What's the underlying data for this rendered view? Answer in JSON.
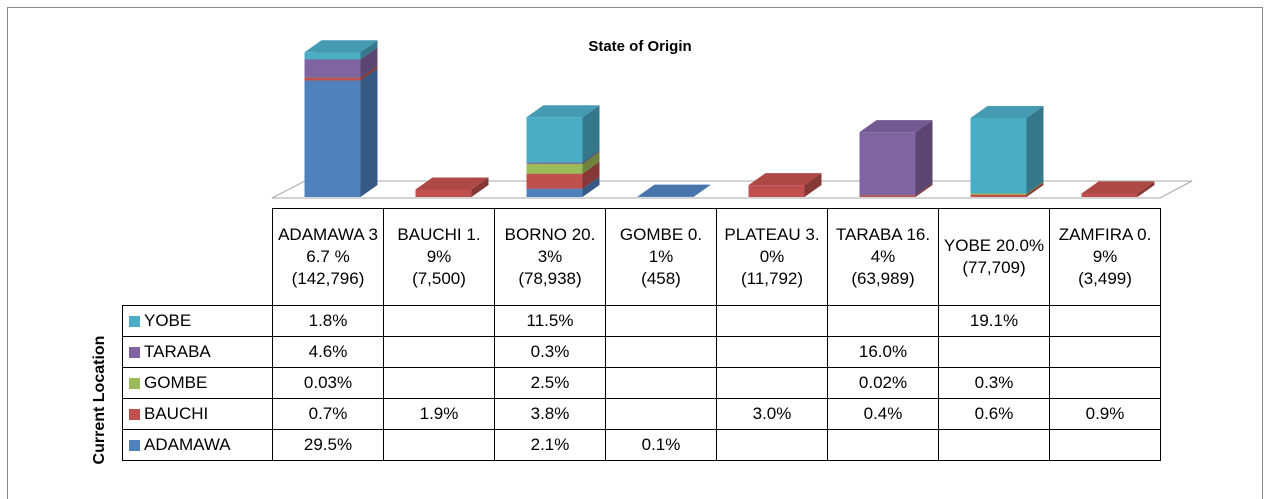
{
  "chart_data": {
    "type": "bar3d_stacked",
    "title": "State of Origin",
    "y_label": "Current Location",
    "categories": [
      "ADAMAWA",
      "BAUCHI",
      "BORNO",
      "GOMBE",
      "PLATEAU",
      "TARABA",
      "YOBE",
      "ZAMFIRA"
    ],
    "totals": [
      36.7,
      1.9,
      20.3,
      0.1,
      3.0,
      16.4,
      20.0,
      0.9
    ],
    "total_labels": [
      "36.7 %",
      "1.9%",
      "20.3%",
      "0.1%",
      "3.0%",
      "16.4%",
      "20.0%",
      "0.9%"
    ],
    "counts": [
      142796,
      7500,
      78938,
      458,
      11792,
      63989,
      77709,
      3499
    ],
    "count_labels": [
      "(142,796)",
      "(7,500)",
      "(78,938)",
      "(458)",
      "(11,792)",
      "(63,989)",
      "(77,709)",
      "(3,499)"
    ],
    "ylim": [
      0,
      40
    ],
    "series": [
      {
        "name": "YOBE",
        "color": "#4bacc6",
        "values": [
          1.8,
          null,
          11.5,
          null,
          null,
          null,
          19.1,
          null
        ],
        "value_labels": [
          "1.8%",
          null,
          "11.5%",
          null,
          null,
          null,
          "19.1%",
          null
        ]
      },
      {
        "name": "TARABA",
        "color": "#8064a2",
        "values": [
          4.6,
          null,
          0.3,
          null,
          null,
          16.0,
          null,
          null
        ],
        "value_labels": [
          "4.6%",
          null,
          "0.3%",
          null,
          null,
          "16.0%",
          null,
          null
        ]
      },
      {
        "name": "GOMBE",
        "color": "#9bbb59",
        "values": [
          0.03,
          null,
          2.5,
          null,
          null,
          0.02,
          0.3,
          null
        ],
        "value_labels": [
          "0.03%",
          null,
          "2.5%",
          null,
          null,
          "0.02%",
          "0.3%",
          null
        ]
      },
      {
        "name": "BAUCHI",
        "color": "#c0504d",
        "values": [
          0.7,
          1.9,
          3.8,
          null,
          3.0,
          0.4,
          0.6,
          0.9
        ],
        "value_labels": [
          "0.7%",
          "1.9%",
          "3.8%",
          null,
          "3.0%",
          "0.4%",
          "0.6%",
          "0.9%"
        ]
      },
      {
        "name": "ADAMAWA",
        "color": "#4f81bd",
        "values": [
          29.5,
          null,
          2.1,
          0.1,
          null,
          null,
          null,
          null
        ],
        "value_labels": [
          "29.5%",
          null,
          "2.1%",
          "0.1%",
          null,
          null,
          null,
          null
        ]
      }
    ]
  }
}
